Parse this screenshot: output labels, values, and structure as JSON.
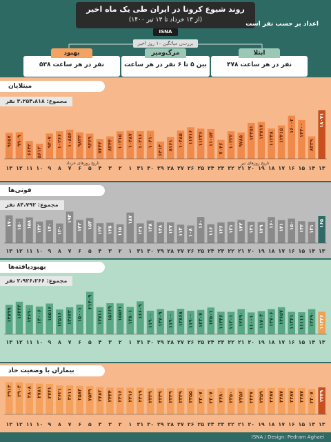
{
  "header": {
    "title": "روند شیوع کرونا در ایران طی یک ماه اخیر",
    "subtitle": "(از ۱۳ خرداد تا ۱۳ تیر ۱۴۰۰)",
    "agency": "ISNA",
    "note": "اعداد بر حسب نفر است",
    "review_label": "بررسی میانگین ۱۰ روز اخیر"
  },
  "cards": [
    {
      "title": "بهبود",
      "value": "۵۳۸ نفر در هر ساعت",
      "color": "#f4a261"
    },
    {
      "title": "مرگ‌ومیر",
      "value": "بین ۵ تا ۶ نفر در هر ساعت",
      "color": "#9bc7b5"
    },
    {
      "title": "ابتلا",
      "value": "۴۷۸ نفر در هر ساعت",
      "color": "#9bc7b5"
    }
  ],
  "sections": [
    {
      "title": "مبتلایان",
      "total": "مجموع: ۳،۲۵۴،۸۱۸ نفر",
      "bg": "#f7b98c",
      "bar": "#f08a4b",
      "bar_last": "#c8501f",
      "label_fill": "#6b2a10"
    },
    {
      "title": "فوتی‌ها",
      "total": "مجموع: ۸۴،۷۹۲ نفر",
      "bg": "#bdbdbd",
      "bar": "#8a8a8a",
      "bar_last": "#2f6b64",
      "label_fill": "#ffffff"
    },
    {
      "title": "بهبودیافته‌ها",
      "total": "مجموع: ۲،۹۲۶،۲۶۶ نفر",
      "bg": "#b5dcc9",
      "bar": "#5aa785",
      "bar_last": "#f0a050",
      "label_fill": "#0f3e2c"
    },
    {
      "title": "بیماران با وضعیت حاد",
      "total": "",
      "bg": "#f7b98c",
      "bar": "#f3a15c",
      "bar_last": "#c8501f",
      "label_fill": "#5a2200"
    }
  ],
  "axis_labels": {
    "month_khordad": "تاریخ روزهای خرداد",
    "month_tir": "تاریخ روزهای تیر"
  },
  "footer": {
    "credit": "ISNA / Design: Pedram Aghaei"
  },
  "chart_data": [
    {
      "type": "bar",
      "title": "مبتلایان",
      "categories": [
        "۱۳",
        "۱۴",
        "۱۵",
        "۱۶",
        "۱۷",
        "۱۸",
        "۱۹",
        "۲۰",
        "۲۱",
        "۲۲",
        "۲۳",
        "۲۴",
        "۲۵",
        "۲۶",
        "۲۷",
        "۲۸",
        "۲۹",
        "۳۰",
        "۳۱",
        "۱",
        "۲",
        "۳",
        "۴",
        "۵",
        "۶",
        "۷",
        "۸",
        "۹",
        "۱۰",
        "۱۱",
        "۱۲",
        "۱۳"
      ],
      "values": [
        9657,
        9909,
        6642,
        5612,
        9407,
        10266,
        10856,
        9834,
        9369,
        7444,
        8344,
        10215,
        10487,
        10316,
        10410,
        6414,
        8161,
        10485,
        11716,
        11236,
        11054,
        7046,
        10232,
        9785,
        13351,
        13717,
        11248,
        12415,
        16002,
        14400,
        8339,
        18071
      ],
      "labels": [
        "۹۶۵۷",
        "۹۹۰۹",
        "۶۶۴۲",
        "۵۶۱۲",
        "۹۴۰۷",
        "۱۰۲۶۶",
        "۱۰۸۵۶",
        "۹۸۳۴",
        "۹۳۶۹",
        "۷۴۴۴",
        "۸۳۴۴",
        "۱۰۲۱۵",
        "۱۰۴۸۷",
        "۱۰۳۱۶",
        "۱۰۴۱۰",
        "۶۴۱۴",
        "۸۱۶۱",
        "۱۰۴۸۵",
        "۱۱۷۱۶",
        "۱۱۲۳۶",
        "۱۱۰۵۴",
        "۷۰۴۶",
        "۱۰۲۳۲",
        "۹۷۸۵",
        "۱۳۳۵۱",
        "۱۳۷۱۷",
        "۱۱۲۴۸",
        "۱۲۴۱۵",
        "۱۶۰۰۲",
        "۱۴۴۰۰",
        "۸۳۳۹",
        "۱۸۰۷۱"
      ],
      "ylim": [
        0,
        20000
      ]
    },
    {
      "type": "bar",
      "title": "فوتی‌ها",
      "categories": [
        "۱۳",
        "۱۴",
        "۱۵",
        "۱۶",
        "۱۷",
        "۱۸",
        "۱۹",
        "۲۰",
        "۲۱",
        "۲۲",
        "۲۳",
        "۲۴",
        "۲۵",
        "۲۶",
        "۲۷",
        "۲۸",
        "۲۹",
        "۳۰",
        "۳۱",
        "۱",
        "۲",
        "۳",
        "۴",
        "۵",
        "۶",
        "۷",
        "۸",
        "۹",
        "۱۰",
        "۱۱",
        "۱۲",
        "۱۳"
      ],
      "values": [
        170,
        150,
        158,
        132,
        140,
        120,
        193,
        142,
        153,
        122,
        125,
        115,
        187,
        121,
        138,
        128,
        127,
        113,
        108,
        160,
        116,
        126,
        131,
        142,
        131,
        129,
        160,
        141,
        150,
        134,
        131,
        165
      ],
      "labels": [
        "۱۷۰",
        "۱۵۰",
        "۱۵۸",
        "۱۳۲",
        "۱۴۰",
        "۱۲۰",
        "۱۹۳",
        "۱۴۲",
        "۱۵۳",
        "۱۲۲",
        "۱۲۵",
        "۱۱۵",
        "۱۸۷",
        "۱۲۱",
        "۱۳۸",
        "۱۲۸",
        "۱۲۷",
        "۱۱۳",
        "۱۰۸",
        "۱۶۰",
        "۱۱۶",
        "۱۲۶",
        "۱۳۱",
        "۱۴۲",
        "۱۳۱",
        "۱۲۹",
        "۱۶۰",
        "۱۴۱",
        "۱۵۰",
        "۱۳۴",
        "۱۳۱",
        "۱۶۵"
      ],
      "ylim": [
        0,
        220
      ]
    },
    {
      "type": "bar",
      "title": "بهبودیافته‌ها",
      "categories": [
        "۱۳",
        "۱۴",
        "۱۵",
        "۱۶",
        "۱۷",
        "۱۸",
        "۱۹",
        "۲۰",
        "۲۱",
        "۲۲",
        "۲۳",
        "۲۴",
        "۲۵",
        "۲۶",
        "۲۷",
        "۲۸",
        "۲۹",
        "۳۰",
        "۳۱",
        "۱",
        "۲",
        "۳",
        "۴",
        "۵",
        "۶",
        "۷",
        "۸",
        "۹",
        "۱۰",
        "۱۱",
        "۱۲",
        "۱۳"
      ],
      "values": [
        14799,
        16444,
        14690,
        14006,
        15516,
        12516,
        13643,
        15001,
        21409,
        13711,
        15669,
        15561,
        13801,
        16609,
        11900,
        12709,
        11900,
        12868,
        11900,
        12307,
        13501,
        11346,
        11301,
        12690,
        11001,
        11703,
        12706,
        13657,
        11341,
        11111,
        12690,
        11346
      ],
      "labels": [
        "۱۴۷۹۹",
        "۱۶۴۴۴",
        "۱۴۶۹۰",
        "۱۴۰۰۶",
        "۱۵۵۱۶",
        "۱۲۵۱۶",
        "۱۳۶۴۳",
        "۱۵۰۰۱",
        "۲۱۴۰۹",
        "۱۳۷۱۱",
        "۱۵۶۶۹",
        "۱۵۵۶۱",
        "۱۳۸۰۱",
        "۱۶۶۰۹",
        "۱۱۹۰۰",
        "۱۲۷۰۹",
        "۱۱۹۰۰",
        "۱۲۸۶۸",
        "۱۱۹۰۰",
        "۱۲۳۰۷",
        "۱۳۵۰۱",
        "۱۱۳۴۶",
        "۱۱۳۰۱",
        "۱۲۶۹۰",
        "۱۱۰۰۱",
        "۱۱۷۰۳",
        "۱۲۷۰۶",
        "۱۳۶۵۷",
        "۱۱۳۴۱",
        "۱۱۱۱۱",
        "۱۲۶۹۰",
        "۱۱۳۴۶"
      ],
      "ylim": [
        0,
        23000
      ]
    },
    {
      "type": "bar",
      "title": "بیماران با وضعیت حاد",
      "categories": [
        "۱۳",
        "۱۴",
        "۱۵",
        "۱۶",
        "۱۷",
        "۱۸",
        "۱۹",
        "۲۰",
        "۲۱",
        "۲۲",
        "۲۳",
        "۲۴",
        "۲۵",
        "۲۶",
        "۲۷",
        "۲۸",
        "۲۹",
        "۳۰",
        "۳۱",
        "۱",
        "۲",
        "۳",
        "۴",
        "۵",
        "۶",
        "۷",
        "۸",
        "۹",
        "۱۰",
        "۱۱",
        "۱۲",
        "۱۳"
      ],
      "values": [
        2914,
        2903,
        2808,
        2781,
        2741,
        2621,
        2611,
        2584,
        2549,
        2483,
        2434,
        2416,
        2416,
        2419,
        2349,
        2349,
        2349,
        2349,
        2355,
        2307,
        2307,
        2380,
        2350,
        2356,
        2327,
        2359,
        2387,
        2387,
        2387,
        2387,
        2307,
        2449
      ],
      "labels": [
        "۲۹۱۴",
        "۲۹۰۳",
        "۲۸۰۸",
        "۲۷۸۱",
        "۲۷۴۱",
        "۲۶۲۱",
        "۲۶۱۱",
        "۲۵۸۴",
        "۲۵۴۹",
        "۲۴۸۳",
        "۲۴۳۴",
        "۲۴۱۶",
        "۲۴۱۶",
        "۲۴۱۹",
        "۲۳۴۹",
        "۲۳۴۹",
        "۲۳۴۹",
        "۲۳۴۹",
        "۲۳۵۵",
        "۲۳۰۷",
        "۲۳۰۷",
        "۲۳۸۰",
        "۲۳۵۰",
        "۲۳۵۶",
        "۲۳۲۷",
        "۲۳۵۹",
        "۲۳۸۷",
        "۲۳۸۷",
        "۲۳۸۷",
        "۲۳۸۷",
        "۲۳۰۷",
        "۲۴۴۹"
      ],
      "ylim": [
        0,
        3000
      ]
    }
  ]
}
